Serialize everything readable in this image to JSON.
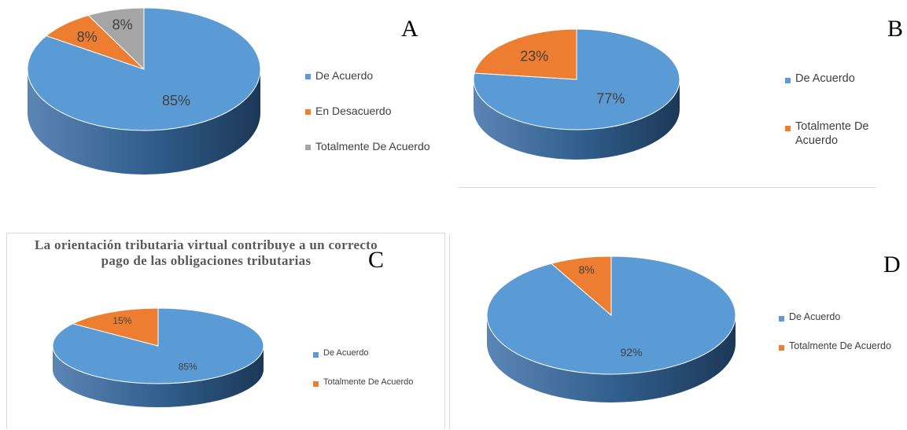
{
  "chart_data": [
    {
      "id": "A",
      "type": "pie",
      "panel_label": "A",
      "title": "",
      "categories": [
        "De Acuerdo",
        "En Desacuerdo",
        "Totalmente De Acuerdo"
      ],
      "values": [
        85,
        8,
        8
      ],
      "data_labels": [
        "85%",
        "8%",
        "8%"
      ],
      "colors": [
        "#5B9BD5",
        "#ED7D31",
        "#A5A5A5"
      ],
      "legend_position": "right",
      "style": "3d"
    },
    {
      "id": "B",
      "type": "pie",
      "panel_label": "B",
      "title": "",
      "categories": [
        "De Acuerdo",
        "Totalmente De Acuerdo"
      ],
      "values": [
        77,
        23
      ],
      "data_labels": [
        "77%",
        "23%"
      ],
      "colors": [
        "#5B9BD5",
        "#ED7D31"
      ],
      "legend_position": "right",
      "style": "3d"
    },
    {
      "id": "C",
      "type": "pie",
      "panel_label": "C",
      "title": "La orientación tributaria virtual contribuye a un correcto pago de las obligaciones tributarias",
      "categories": [
        "De Acuerdo",
        "Totalmente De Acuerdo"
      ],
      "values": [
        85,
        15
      ],
      "data_labels": [
        "85%",
        "15%"
      ],
      "colors": [
        "#5B9BD5",
        "#ED7D31"
      ],
      "legend_position": "right",
      "style": "3d"
    },
    {
      "id": "D",
      "type": "pie",
      "panel_label": "D",
      "title": "",
      "categories": [
        "De Acuerdo",
        "Totalmente De Acuerdo"
      ],
      "values": [
        92,
        8
      ],
      "data_labels": [
        "92%",
        "8%"
      ],
      "colors": [
        "#5B9BD5",
        "#ED7D31"
      ],
      "legend_position": "right",
      "style": "3d"
    }
  ]
}
